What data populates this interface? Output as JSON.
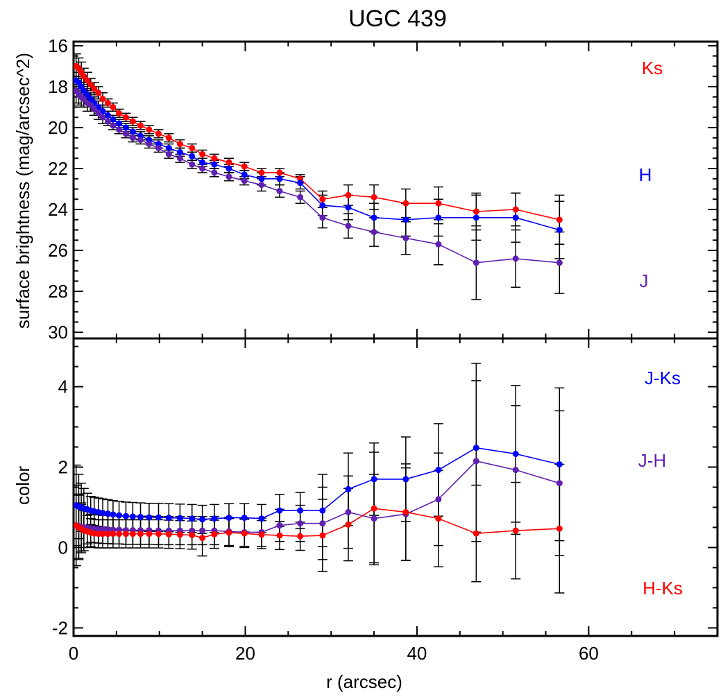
{
  "title": "UGC 439",
  "chart_data": [
    {
      "type": "line",
      "panel": "top",
      "ylabel": "surface brightness (mag/arcsec^2)",
      "xlabel": "",
      "xlim": [
        0,
        75
      ],
      "ylim": [
        30.3,
        15.8
      ],
      "y_inverted": true,
      "xticks": [
        0,
        20,
        40,
        60
      ],
      "yticks": [
        16,
        18,
        20,
        22,
        24,
        26,
        28,
        30
      ],
      "xtick_labels": [],
      "ytick_labels": [
        "16",
        "18",
        "20",
        "22",
        "24",
        "26",
        "28",
        "30"
      ],
      "legend_placement": "right, labels placed beside curves",
      "series": [
        {
          "name": "Ks",
          "color": "#ff0000",
          "x": [
            0.3,
            0.6,
            0.9,
            1.2,
            1.6,
            2.0,
            2.4,
            2.9,
            3.4,
            4.0,
            4.6,
            5.3,
            6.1,
            6.9,
            7.8,
            8.8,
            9.9,
            11.1,
            12.4,
            13.8,
            15.0,
            16.4,
            18.1,
            19.9,
            21.9,
            24.0,
            26.4,
            29.0,
            32.0,
            35.0,
            38.7,
            42.5,
            46.9,
            51.5,
            56.6
          ],
          "y": [
            17.0,
            17.1,
            17.3,
            17.5,
            17.7,
            17.9,
            18.1,
            18.3,
            18.6,
            18.8,
            19.0,
            19.3,
            19.5,
            19.7,
            19.9,
            20.1,
            20.3,
            20.5,
            20.8,
            21.0,
            21.3,
            21.5,
            21.7,
            21.9,
            22.2,
            22.2,
            22.5,
            23.5,
            23.3,
            23.4,
            23.7,
            23.7,
            24.1,
            24.0,
            24.5
          ],
          "yerr": [
            0.6,
            0.5,
            0.5,
            0.4,
            0.4,
            0.3,
            0.3,
            0.3,
            0.3,
            0.2,
            0.2,
            0.2,
            0.2,
            0.2,
            0.2,
            0.2,
            0.2,
            0.2,
            0.2,
            0.2,
            0.2,
            0.2,
            0.2,
            0.2,
            0.2,
            0.2,
            0.2,
            0.4,
            0.5,
            0.6,
            0.7,
            0.8,
            0.9,
            0.8,
            1.2
          ]
        },
        {
          "name": "H",
          "color": "#0000ff",
          "x": [
            0.3,
            0.6,
            0.9,
            1.2,
            1.6,
            2.0,
            2.4,
            2.9,
            3.4,
            4.0,
            4.6,
            5.3,
            6.1,
            6.9,
            7.8,
            8.8,
            9.9,
            11.1,
            12.4,
            13.8,
            15.0,
            16.4,
            18.1,
            19.9,
            21.9,
            24.0,
            26.4,
            29.0,
            32.0,
            35.0,
            38.7,
            42.5,
            46.9,
            51.5,
            56.6
          ],
          "y": [
            17.7,
            17.8,
            18.0,
            18.2,
            18.4,
            18.6,
            18.8,
            19.0,
            19.2,
            19.4,
            19.6,
            19.8,
            20.0,
            20.2,
            20.4,
            20.6,
            20.8,
            21.0,
            21.2,
            21.4,
            21.7,
            21.8,
            22.0,
            22.3,
            22.5,
            22.5,
            22.7,
            23.8,
            23.9,
            24.4,
            24.5,
            24.4,
            24.4,
            24.4,
            25.0
          ],
          "yerr": [
            0.6,
            0.5,
            0.5,
            0.4,
            0.4,
            0.3,
            0.3,
            0.3,
            0.3,
            0.2,
            0.2,
            0.2,
            0.2,
            0.2,
            0.2,
            0.2,
            0.2,
            0.2,
            0.2,
            0.2,
            0.2,
            0.2,
            0.2,
            0.2,
            0.3,
            0.3,
            0.3,
            0.5,
            0.6,
            0.7,
            0.8,
            0.9,
            1.1,
            1.2,
            1.4
          ]
        },
        {
          "name": "J",
          "color": "#6020b0",
          "x": [
            0.3,
            0.6,
            0.9,
            1.2,
            1.6,
            2.0,
            2.4,
            2.9,
            3.4,
            4.0,
            4.6,
            5.3,
            6.1,
            6.9,
            7.8,
            8.8,
            9.9,
            11.1,
            12.4,
            13.8,
            15.0,
            16.4,
            18.1,
            19.9,
            21.9,
            24.0,
            26.4,
            29.0,
            32.0,
            35.0,
            38.7,
            42.5,
            46.9,
            51.5,
            56.6
          ],
          "y": [
            18.2,
            18.4,
            18.5,
            18.6,
            18.8,
            18.9,
            19.1,
            19.3,
            19.5,
            19.7,
            19.9,
            20.1,
            20.3,
            20.5,
            20.6,
            20.8,
            21.0,
            21.3,
            21.5,
            21.8,
            22.0,
            22.2,
            22.4,
            22.6,
            22.8,
            23.1,
            23.4,
            24.4,
            24.8,
            25.1,
            25.4,
            25.7,
            26.6,
            26.4,
            26.6
          ],
          "yerr": [
            0.6,
            0.5,
            0.5,
            0.4,
            0.4,
            0.3,
            0.3,
            0.3,
            0.3,
            0.2,
            0.2,
            0.2,
            0.2,
            0.2,
            0.2,
            0.2,
            0.2,
            0.2,
            0.2,
            0.2,
            0.2,
            0.2,
            0.2,
            0.2,
            0.3,
            0.3,
            0.3,
            0.5,
            0.6,
            0.7,
            0.8,
            1.0,
            1.8,
            1.4,
            1.5
          ]
        }
      ],
      "annotations": [
        "Ks",
        "H",
        "J"
      ]
    },
    {
      "type": "line",
      "panel": "bottom",
      "ylabel": "color",
      "xlabel": "r (arcsec)",
      "xlim": [
        0,
        75
      ],
      "ylim": [
        -2.2,
        5.2
      ],
      "xticks": [
        0,
        20,
        40,
        60
      ],
      "yticks": [
        -2,
        0,
        2,
        4
      ],
      "xtick_labels": [
        "0",
        "20",
        "40",
        "60"
      ],
      "ytick_labels": [
        "-2",
        "0",
        "2",
        "4"
      ],
      "legend_placement": "right, labels placed beside curves",
      "series": [
        {
          "name": "J-Ks",
          "color": "#0000ff",
          "x": [
            0.3,
            0.6,
            0.9,
            1.2,
            1.6,
            2.0,
            2.4,
            2.9,
            3.4,
            4.0,
            4.6,
            5.3,
            6.1,
            6.9,
            7.8,
            8.8,
            9.9,
            11.1,
            12.4,
            13.8,
            15.0,
            16.4,
            18.1,
            19.9,
            21.9,
            24.0,
            26.4,
            29.0,
            32.0,
            35.0,
            38.7,
            42.5,
            46.9,
            51.5,
            56.6
          ],
          "y": [
            1.05,
            1.02,
            1.0,
            0.97,
            0.95,
            0.92,
            0.9,
            0.88,
            0.86,
            0.84,
            0.82,
            0.8,
            0.78,
            0.77,
            0.76,
            0.75,
            0.75,
            0.74,
            0.73,
            0.72,
            0.7,
            0.72,
            0.74,
            0.74,
            0.72,
            0.92,
            0.92,
            0.92,
            1.45,
            1.7,
            1.7,
            1.93,
            2.48,
            2.33,
            2.07
          ],
          "yerr": [
            1.0,
            0.8,
            0.6,
            0.5,
            0.4,
            0.35,
            0.35,
            0.35,
            0.35,
            0.35,
            0.35,
            0.35,
            0.35,
            0.35,
            0.35,
            0.35,
            0.35,
            0.35,
            0.35,
            0.35,
            0.35,
            0.35,
            0.35,
            0.35,
            0.35,
            0.4,
            0.45,
            0.9,
            0.9,
            0.9,
            1.05,
            1.15,
            2.1,
            1.7,
            1.9
          ]
        },
        {
          "name": "J-H",
          "color": "#6020b0",
          "x": [
            0.3,
            0.6,
            0.9,
            1.2,
            1.6,
            2.0,
            2.4,
            2.9,
            3.4,
            4.0,
            4.6,
            5.3,
            6.1,
            6.9,
            7.8,
            8.8,
            9.9,
            11.1,
            12.4,
            13.8,
            15.0,
            16.4,
            18.1,
            19.9,
            21.9,
            24.0,
            26.4,
            29.0,
            32.0,
            35.0,
            38.7,
            42.5,
            46.9,
            51.5,
            56.6
          ],
          "y": [
            0.55,
            0.53,
            0.51,
            0.5,
            0.49,
            0.48,
            0.47,
            0.46,
            0.45,
            0.45,
            0.44,
            0.44,
            0.43,
            0.43,
            0.43,
            0.43,
            0.42,
            0.42,
            0.42,
            0.42,
            0.42,
            0.42,
            0.4,
            0.38,
            0.38,
            0.55,
            0.6,
            0.6,
            0.88,
            0.72,
            0.83,
            1.2,
            2.15,
            1.93,
            1.6
          ],
          "yerr": [
            1.0,
            0.8,
            0.6,
            0.5,
            0.4,
            0.35,
            0.35,
            0.35,
            0.35,
            0.35,
            0.35,
            0.35,
            0.35,
            0.35,
            0.35,
            0.35,
            0.35,
            0.35,
            0.35,
            0.35,
            0.35,
            0.35,
            0.35,
            0.35,
            0.35,
            0.4,
            0.45,
            0.9,
            0.9,
            1.1,
            1.15,
            1.15,
            2.0,
            1.6,
            1.8
          ]
        },
        {
          "name": "H-Ks",
          "color": "#ff0000",
          "x": [
            0.3,
            0.6,
            0.9,
            1.2,
            1.6,
            2.0,
            2.4,
            2.9,
            3.4,
            4.0,
            4.6,
            5.3,
            6.1,
            6.9,
            7.8,
            8.8,
            9.9,
            11.1,
            12.4,
            13.8,
            15.0,
            16.4,
            18.1,
            19.9,
            21.9,
            24.0,
            26.4,
            29.0,
            32.0,
            35.0,
            38.7,
            42.5,
            46.9,
            51.5,
            56.6
          ],
          "y": [
            0.55,
            0.5,
            0.47,
            0.42,
            0.4,
            0.37,
            0.35,
            0.34,
            0.34,
            0.34,
            0.34,
            0.34,
            0.34,
            0.34,
            0.34,
            0.34,
            0.34,
            0.33,
            0.32,
            0.31,
            0.24,
            0.33,
            0.37,
            0.35,
            0.32,
            0.3,
            0.28,
            0.3,
            0.57,
            0.97,
            0.88,
            0.72,
            0.35,
            0.42,
            0.47
          ],
          "yerr": [
            1.0,
            0.8,
            0.6,
            0.5,
            0.4,
            0.35,
            0.35,
            0.35,
            0.35,
            0.35,
            0.35,
            0.35,
            0.35,
            0.35,
            0.35,
            0.35,
            0.35,
            0.35,
            0.35,
            0.35,
            0.45,
            0.35,
            0.35,
            0.35,
            0.35,
            0.35,
            0.35,
            0.9,
            0.9,
            1.4,
            1.2,
            1.2,
            1.2,
            1.2,
            1.6
          ]
        }
      ],
      "annotations": [
        "J-Ks",
        "J-H",
        "H-Ks"
      ]
    }
  ]
}
